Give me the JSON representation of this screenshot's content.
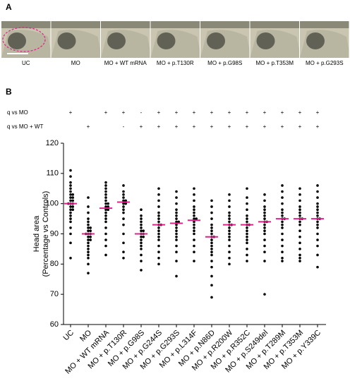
{
  "panel_a": {
    "label": "A",
    "images": [
      "UC",
      "MO",
      "MO + WT mRNA",
      "MO + p.T130R",
      "MO + p.G98S",
      "MO + p.T353M",
      "MO + p.G293S"
    ]
  },
  "chart_data": {
    "type": "dot",
    "panel_label": "B",
    "categories": [
      "UC",
      "MO",
      "MO + WT mRNA",
      "MO + p.T130R",
      "MO + p.G98S",
      "MO + p.G244S",
      "MO + p.G293S",
      "MO + p.L314F",
      "MO + p.N86D",
      "MO + p.R200W",
      "MO + p.R352C",
      "MO + p.S249del",
      "MO + p.T289M",
      "MO + p.T353M",
      "MO + p.Y339C"
    ],
    "significance": [
      {
        "label": "q vs MO",
        "marks": [
          "+",
          null,
          "+",
          "+",
          "-",
          "+",
          "+",
          "+",
          "+",
          "+",
          "+",
          "+",
          "+",
          "+",
          "+"
        ]
      },
      {
        "label": "q vs MO + WT",
        "marks": [
          null,
          "+",
          null,
          "-",
          "+",
          "+",
          "+",
          "+",
          "+",
          "+",
          "+",
          "+",
          "+",
          "+",
          "+"
        ]
      }
    ],
    "values": [
      [
        111,
        109,
        107,
        106,
        105,
        104,
        103,
        103,
        102,
        102,
        101,
        101,
        100,
        100,
        100,
        99,
        99,
        98,
        98,
        97,
        96,
        95,
        94,
        92,
        90,
        87,
        82
      ],
      [
        102,
        99,
        97,
        95,
        94,
        93,
        92,
        92,
        91,
        91,
        90,
        90,
        90,
        89,
        89,
        88,
        88,
        87,
        86,
        85,
        84,
        83,
        82,
        80,
        77
      ],
      [
        107,
        106,
        105,
        104,
        103,
        102,
        101,
        100,
        100,
        99,
        99,
        98,
        98,
        97,
        96,
        95,
        94,
        92,
        90,
        88,
        86,
        83
      ],
      [
        106,
        104,
        103,
        102,
        101,
        101,
        100,
        100,
        99,
        98,
        97,
        95,
        93,
        90,
        87,
        84,
        82
      ],
      [
        98,
        96,
        95,
        94,
        93,
        92,
        91,
        91,
        90,
        90,
        89,
        89,
        88,
        87,
        86,
        85,
        83,
        81,
        78
      ],
      [
        105,
        103,
        101,
        99,
        97,
        96,
        95,
        94,
        93,
        93,
        92,
        91,
        90,
        89,
        88,
        86,
        84,
        82,
        80
      ],
      [
        104,
        102,
        100,
        98,
        97,
        96,
        95,
        94,
        94,
        93,
        92,
        91,
        90,
        89,
        88,
        86,
        84,
        81,
        76
      ],
      [
        105,
        103,
        101,
        99,
        98,
        97,
        96,
        95,
        95,
        94,
        93,
        92,
        91,
        90,
        88,
        86,
        84,
        81
      ],
      [
        101,
        99,
        97,
        95,
        93,
        92,
        91,
        90,
        89,
        89,
        88,
        87,
        86,
        85,
        84,
        83,
        81,
        79,
        76,
        73,
        69
      ],
      [
        103,
        101,
        99,
        97,
        96,
        95,
        94,
        93,
        93,
        92,
        91,
        90,
        89,
        88,
        86,
        84,
        82,
        80
      ],
      [
        105,
        102,
        100,
        98,
        96,
        95,
        94,
        93,
        93,
        92,
        91,
        90,
        89,
        88,
        87,
        85,
        83,
        81
      ],
      [
        103,
        101,
        99,
        98,
        97,
        96,
        95,
        94,
        94,
        93,
        92,
        91,
        90,
        88,
        86,
        84,
        81,
        70
      ],
      [
        106,
        104,
        102,
        100,
        98,
        97,
        96,
        95,
        95,
        94,
        93,
        92,
        90,
        88,
        86,
        84,
        82,
        81
      ],
      [
        105,
        103,
        101,
        99,
        98,
        97,
        96,
        95,
        95,
        94,
        93,
        91,
        89,
        87,
        85,
        83,
        82,
        81
      ],
      [
        106,
        104,
        102,
        100,
        99,
        98,
        97,
        96,
        95,
        95,
        94,
        93,
        92,
        90,
        88,
        86,
        83,
        79
      ]
    ],
    "medians": [
      100,
      90,
      98.5,
      100.5,
      90,
      93,
      93.5,
      94.5,
      89,
      93,
      93,
      94,
      95,
      95,
      95
    ],
    "color": "#000000",
    "median_color": "#e0218a",
    "y_label": [
      "Head area",
      "(Percentage vs Controls)"
    ],
    "ylim": [
      60,
      120
    ],
    "yticks": [
      60,
      70,
      80,
      90,
      100,
      110,
      120
    ]
  }
}
